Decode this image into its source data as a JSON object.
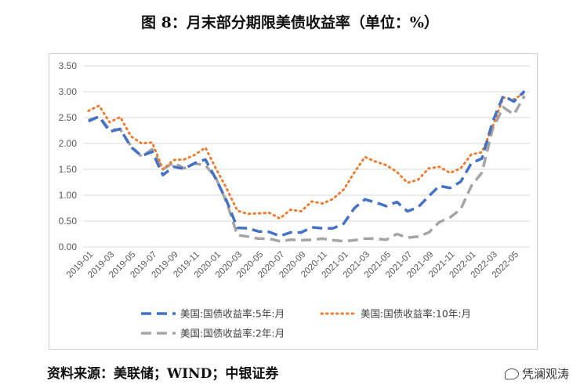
{
  "title": "图 8：月末部分期限美债收益率（单位：%）",
  "source": "资料来源：美联储；WIND；中银证券",
  "watermark": "凭澜观涛",
  "watermark_icon": "wechat-icon",
  "chart_data": {
    "type": "line",
    "ylim": [
      0,
      3.5
    ],
    "yticks": [
      "0.00",
      "0.50",
      "1.00",
      "1.50",
      "2.00",
      "2.50",
      "3.00",
      "3.50"
    ],
    "grid": true,
    "legend_position": "bottom",
    "categories": [
      "2019-01",
      "2019-02",
      "2019-03",
      "2019-04",
      "2019-05",
      "2019-06",
      "2019-07",
      "2019-08",
      "2019-09",
      "2019-10",
      "2019-11",
      "2019-12",
      "2020-01",
      "2020-02",
      "2020-03",
      "2020-04",
      "2020-05",
      "2020-06",
      "2020-07",
      "2020-08",
      "2020-09",
      "2020-10",
      "2020-11",
      "2020-12",
      "2021-01",
      "2021-02",
      "2021-03",
      "2021-04",
      "2021-05",
      "2021-06",
      "2021-07",
      "2021-08",
      "2021-09",
      "2021-10",
      "2021-11",
      "2021-12",
      "2022-01",
      "2022-02",
      "2022-03",
      "2022-04",
      "2022-05",
      "2022-06"
    ],
    "xtick_labels": [
      "2019-01",
      "2019-03",
      "2019-05",
      "2019-07",
      "2019-09",
      "2019-11",
      "2020-01",
      "2020-03",
      "2020-05",
      "2020-07",
      "2020-09",
      "2020-11",
      "2021-01",
      "2021-03",
      "2021-05",
      "2021-07",
      "2021-09",
      "2021-11",
      "2022-01",
      "2022-03",
      "2022-05"
    ],
    "series": [
      {
        "name": "美国:国债收益率:5年:月",
        "color": "#4472C4",
        "dash": "long",
        "values": [
          2.43,
          2.52,
          2.23,
          2.28,
          1.93,
          1.76,
          1.84,
          1.39,
          1.55,
          1.51,
          1.62,
          1.69,
          1.31,
          0.89,
          0.37,
          0.36,
          0.3,
          0.29,
          0.21,
          0.28,
          0.28,
          0.38,
          0.36,
          0.36,
          0.45,
          0.75,
          0.92,
          0.86,
          0.79,
          0.87,
          0.69,
          0.77,
          0.98,
          1.18,
          1.14,
          1.26,
          1.62,
          1.71,
          2.42,
          2.92,
          2.81,
          3.01
        ]
      },
      {
        "name": "美国:国债收益率:10年:月",
        "color": "#ED7D31",
        "dash": "dot",
        "values": [
          2.63,
          2.73,
          2.41,
          2.51,
          2.14,
          2.0,
          2.02,
          1.5,
          1.68,
          1.69,
          1.78,
          1.92,
          1.51,
          1.13,
          0.7,
          0.64,
          0.65,
          0.66,
          0.55,
          0.72,
          0.69,
          0.88,
          0.84,
          0.93,
          1.11,
          1.44,
          1.74,
          1.65,
          1.58,
          1.45,
          1.24,
          1.3,
          1.52,
          1.55,
          1.43,
          1.52,
          1.79,
          1.83,
          2.32,
          2.89,
          2.85,
          2.98
        ]
      },
      {
        "name": "美国:国债收益率:2年:月",
        "color": "#A5A5A5",
        "dash": "long",
        "values": [
          2.45,
          2.52,
          2.27,
          2.27,
          1.95,
          1.75,
          1.89,
          1.5,
          1.63,
          1.52,
          1.61,
          1.58,
          1.33,
          0.86,
          0.23,
          0.2,
          0.16,
          0.16,
          0.11,
          0.14,
          0.13,
          0.14,
          0.16,
          0.13,
          0.11,
          0.13,
          0.16,
          0.16,
          0.14,
          0.25,
          0.18,
          0.2,
          0.28,
          0.48,
          0.57,
          0.73,
          1.18,
          1.44,
          2.28,
          2.7,
          2.56,
          2.92
        ]
      }
    ]
  }
}
